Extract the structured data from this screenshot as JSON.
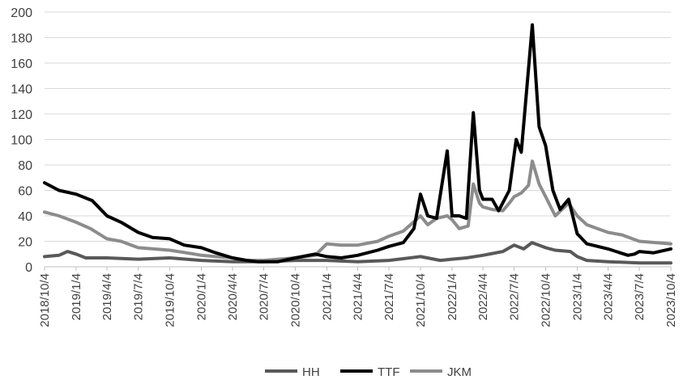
{
  "chart_data": {
    "type": "line",
    "title": "",
    "xlabel": "",
    "ylabel": "",
    "ylim": [
      0,
      200
    ],
    "yticks": [
      0,
      20,
      40,
      60,
      80,
      100,
      120,
      140,
      160,
      180,
      200
    ],
    "xlim": [
      "2018-10-04",
      "2023-10-04"
    ],
    "xtick_labels": [
      "2018/10/4",
      "2019/1/4",
      "2019/4/4",
      "2019/7/4",
      "2019/10/4",
      "2020/1/4",
      "2020/4/4",
      "2020/7/4",
      "2020/10/4",
      "2021/1/4",
      "2021/4/4",
      "2021/7/4",
      "2021/10/4",
      "2022/1/4",
      "2022/4/4",
      "2022/7/4",
      "2022/10/4",
      "2023/1/4",
      "2023/4/4",
      "2023/7/4",
      "2023/10/4"
    ],
    "grid": "horizontal",
    "legend_position": "bottom",
    "series": [
      {
        "name": "HH",
        "color": "#595959",
        "points": [
          [
            "2018-10-04",
            8
          ],
          [
            "2018-11-15",
            9
          ],
          [
            "2018-12-10",
            12
          ],
          [
            "2019-01-04",
            10
          ],
          [
            "2019-02-01",
            7
          ],
          [
            "2019-04-04",
            7
          ],
          [
            "2019-07-04",
            6
          ],
          [
            "2019-10-04",
            7
          ],
          [
            "2020-01-04",
            5
          ],
          [
            "2020-04-04",
            4
          ],
          [
            "2020-07-04",
            4
          ],
          [
            "2020-10-04",
            5
          ],
          [
            "2021-01-04",
            5
          ],
          [
            "2021-04-04",
            4
          ],
          [
            "2021-07-04",
            5
          ],
          [
            "2021-10-04",
            8
          ],
          [
            "2021-12-01",
            5
          ],
          [
            "2022-01-04",
            6
          ],
          [
            "2022-02-15",
            7
          ],
          [
            "2022-04-04",
            9
          ],
          [
            "2022-06-01",
            12
          ],
          [
            "2022-07-04",
            17
          ],
          [
            "2022-08-01",
            14
          ],
          [
            "2022-08-25",
            19
          ],
          [
            "2022-10-04",
            15
          ],
          [
            "2022-11-01",
            13
          ],
          [
            "2022-12-15",
            12
          ],
          [
            "2023-01-04",
            8
          ],
          [
            "2023-02-01",
            5
          ],
          [
            "2023-04-04",
            4
          ],
          [
            "2023-07-04",
            3
          ],
          [
            "2023-10-04",
            3
          ]
        ]
      },
      {
        "name": "TTF",
        "color": "#000000",
        "points": [
          [
            "2018-10-04",
            66
          ],
          [
            "2018-11-15",
            60
          ],
          [
            "2019-01-04",
            57
          ],
          [
            "2019-02-20",
            52
          ],
          [
            "2019-04-04",
            40
          ],
          [
            "2019-05-15",
            35
          ],
          [
            "2019-07-04",
            27
          ],
          [
            "2019-08-15",
            23
          ],
          [
            "2019-10-04",
            22
          ],
          [
            "2019-11-15",
            17
          ],
          [
            "2020-01-04",
            15
          ],
          [
            "2020-02-15",
            11
          ],
          [
            "2020-04-04",
            7
          ],
          [
            "2020-05-15",
            5
          ],
          [
            "2020-06-15",
            4
          ],
          [
            "2020-07-04",
            4
          ],
          [
            "2020-08-15",
            4
          ],
          [
            "2020-10-04",
            7
          ],
          [
            "2020-12-01",
            10
          ],
          [
            "2021-01-04",
            8
          ],
          [
            "2021-02-15",
            7
          ],
          [
            "2021-04-04",
            9
          ],
          [
            "2021-06-01",
            13
          ],
          [
            "2021-07-04",
            16
          ],
          [
            "2021-08-15",
            19
          ],
          [
            "2021-09-15",
            30
          ],
          [
            "2021-10-04",
            57
          ],
          [
            "2021-10-25",
            40
          ],
          [
            "2021-11-20",
            38
          ],
          [
            "2021-12-21",
            91
          ],
          [
            "2022-01-04",
            40
          ],
          [
            "2022-01-25",
            40
          ],
          [
            "2022-02-15",
            38
          ],
          [
            "2022-03-07",
            121
          ],
          [
            "2022-03-25",
            60
          ],
          [
            "2022-04-04",
            53
          ],
          [
            "2022-05-01",
            53
          ],
          [
            "2022-05-20",
            44
          ],
          [
            "2022-06-20",
            60
          ],
          [
            "2022-07-10",
            100
          ],
          [
            "2022-07-25",
            90
          ],
          [
            "2022-08-26",
            190
          ],
          [
            "2022-09-15",
            110
          ],
          [
            "2022-10-04",
            95
          ],
          [
            "2022-10-25",
            60
          ],
          [
            "2022-11-15",
            45
          ],
          [
            "2022-12-10",
            53
          ],
          [
            "2023-01-04",
            26
          ],
          [
            "2023-02-01",
            18
          ],
          [
            "2023-04-04",
            14
          ],
          [
            "2023-06-01",
            9
          ],
          [
            "2023-06-20",
            10
          ],
          [
            "2023-07-04",
            12
          ],
          [
            "2023-08-15",
            11
          ],
          [
            "2023-10-04",
            14
          ]
        ]
      },
      {
        "name": "JKM",
        "color": "#8c8c8c",
        "points": [
          [
            "2018-10-04",
            43
          ],
          [
            "2018-11-15",
            40
          ],
          [
            "2019-01-04",
            35
          ],
          [
            "2019-02-15",
            30
          ],
          [
            "2019-04-04",
            22
          ],
          [
            "2019-05-15",
            20
          ],
          [
            "2019-07-04",
            15
          ],
          [
            "2019-10-04",
            13
          ],
          [
            "2019-12-15",
            10
          ],
          [
            "2020-01-04",
            9
          ],
          [
            "2020-02-15",
            8
          ],
          [
            "2020-04-04",
            7
          ],
          [
            "2020-05-15",
            5
          ],
          [
            "2020-07-04",
            5
          ],
          [
            "2020-10-04",
            7
          ],
          [
            "2020-12-01",
            9
          ],
          [
            "2021-01-04",
            18
          ],
          [
            "2021-02-15",
            17
          ],
          [
            "2021-04-04",
            17
          ],
          [
            "2021-06-01",
            20
          ],
          [
            "2021-07-04",
            24
          ],
          [
            "2021-08-15",
            28
          ],
          [
            "2021-10-04",
            40
          ],
          [
            "2021-10-25",
            33
          ],
          [
            "2021-11-20",
            38
          ],
          [
            "2021-12-21",
            40
          ],
          [
            "2022-01-04",
            37
          ],
          [
            "2022-01-25",
            30
          ],
          [
            "2022-02-20",
            32
          ],
          [
            "2022-03-07",
            65
          ],
          [
            "2022-03-25",
            50
          ],
          [
            "2022-04-04",
            47
          ],
          [
            "2022-05-01",
            45
          ],
          [
            "2022-06-01",
            44
          ],
          [
            "2022-06-20",
            50
          ],
          [
            "2022-07-04",
            55
          ],
          [
            "2022-07-25",
            58
          ],
          [
            "2022-08-15",
            64
          ],
          [
            "2022-08-26",
            83
          ],
          [
            "2022-09-15",
            65
          ],
          [
            "2022-10-04",
            55
          ],
          [
            "2022-11-01",
            40
          ],
          [
            "2022-12-10",
            50
          ],
          [
            "2023-01-04",
            40
          ],
          [
            "2023-02-01",
            33
          ],
          [
            "2023-04-04",
            27
          ],
          [
            "2023-05-15",
            25
          ],
          [
            "2023-07-04",
            20
          ],
          [
            "2023-10-04",
            18
          ]
        ]
      }
    ]
  }
}
